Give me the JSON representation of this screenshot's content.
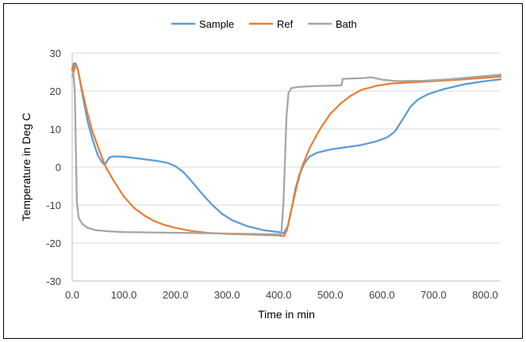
{
  "chart_data": {
    "type": "line",
    "title": "",
    "xlabel": "Time in min",
    "ylabel": "Temperature in Deg C",
    "xlim": [
      0,
      830
    ],
    "ylim": [
      -30,
      30
    ],
    "x_ticks": [
      0,
      100,
      200,
      300,
      400,
      500,
      600,
      700,
      800
    ],
    "x_tick_labels": [
      "0.0",
      "100.0",
      "200.0",
      "300.0",
      "400.0",
      "500.0",
      "600.0",
      "700.0",
      "800.0"
    ],
    "y_ticks": [
      -30,
      -20,
      -10,
      0,
      10,
      20,
      30
    ],
    "y_tick_labels": [
      "-30",
      "-20",
      "-10",
      "0",
      "10",
      "20",
      "30"
    ],
    "grid": "horizontal",
    "legend_position": "top-center",
    "series": [
      {
        "name": "Sample",
        "color": "#5B9BD5",
        "points": [
          [
            0,
            25.5
          ],
          [
            3,
            27.3
          ],
          [
            7,
            27.2
          ],
          [
            12,
            25
          ],
          [
            20,
            19
          ],
          [
            30,
            12
          ],
          [
            40,
            7
          ],
          [
            50,
            3
          ],
          [
            58,
            1.2
          ],
          [
            63,
            0.6
          ],
          [
            67,
            1.5
          ],
          [
            72,
            2.5
          ],
          [
            80,
            2.8
          ],
          [
            100,
            2.7
          ],
          [
            130,
            2.2
          ],
          [
            165,
            1.6
          ],
          [
            185,
            1.1
          ],
          [
            200,
            0.2
          ],
          [
            215,
            -1.3
          ],
          [
            230,
            -3.5
          ],
          [
            250,
            -6.8
          ],
          [
            270,
            -9.8
          ],
          [
            290,
            -12.3
          ],
          [
            310,
            -14
          ],
          [
            340,
            -15.6
          ],
          [
            370,
            -16.6
          ],
          [
            400,
            -17.1
          ],
          [
            410,
            -17.4
          ],
          [
            418,
            -15.5
          ],
          [
            425,
            -11
          ],
          [
            432,
            -6
          ],
          [
            440,
            -2
          ],
          [
            450,
            1
          ],
          [
            460,
            2.8
          ],
          [
            475,
            3.8
          ],
          [
            500,
            4.6
          ],
          [
            530,
            5.2
          ],
          [
            560,
            5.8
          ],
          [
            590,
            6.8
          ],
          [
            610,
            7.8
          ],
          [
            625,
            9.3
          ],
          [
            640,
            12.5
          ],
          [
            655,
            15.8
          ],
          [
            670,
            17.8
          ],
          [
            690,
            19.2
          ],
          [
            720,
            20.5
          ],
          [
            760,
            21.8
          ],
          [
            800,
            22.6
          ],
          [
            830,
            23.1
          ]
        ]
      },
      {
        "name": "Ref",
        "color": "#ED7D31",
        "points": [
          [
            0,
            26
          ],
          [
            2,
            24.5
          ],
          [
            6,
            26.8
          ],
          [
            10,
            26.2
          ],
          [
            18,
            21
          ],
          [
            28,
            15
          ],
          [
            40,
            9
          ],
          [
            55,
            3.5
          ],
          [
            65,
            0
          ],
          [
            80,
            -3.5
          ],
          [
            100,
            -7.8
          ],
          [
            120,
            -10.8
          ],
          [
            140,
            -12.8
          ],
          [
            160,
            -14.3
          ],
          [
            180,
            -15.3
          ],
          [
            200,
            -16
          ],
          [
            230,
            -16.8
          ],
          [
            260,
            -17.3
          ],
          [
            300,
            -17.6
          ],
          [
            350,
            -17.8
          ],
          [
            400,
            -18
          ],
          [
            410,
            -18.2
          ],
          [
            416,
            -16.5
          ],
          [
            425,
            -11
          ],
          [
            435,
            -5
          ],
          [
            445,
            0
          ],
          [
            460,
            5
          ],
          [
            480,
            10
          ],
          [
            500,
            14
          ],
          [
            520,
            16.7
          ],
          [
            540,
            18.8
          ],
          [
            560,
            20.3
          ],
          [
            590,
            21.4
          ],
          [
            620,
            22
          ],
          [
            660,
            22.3
          ],
          [
            700,
            22.6
          ],
          [
            750,
            23
          ],
          [
            800,
            23.5
          ],
          [
            830,
            23.8
          ]
        ]
      },
      {
        "name": "Bath",
        "color": "#A5A5A5",
        "points": [
          [
            0,
            24
          ],
          [
            2,
            25
          ],
          [
            5,
            20
          ],
          [
            7,
            5
          ],
          [
            9,
            -9
          ],
          [
            12,
            -13
          ],
          [
            15,
            -14
          ],
          [
            20,
            -15
          ],
          [
            30,
            -16
          ],
          [
            45,
            -16.6
          ],
          [
            70,
            -16.9
          ],
          [
            100,
            -17.1
          ],
          [
            150,
            -17.2
          ],
          [
            200,
            -17.3
          ],
          [
            250,
            -17.4
          ],
          [
            300,
            -17.5
          ],
          [
            350,
            -17.6
          ],
          [
            400,
            -17.7
          ],
          [
            405,
            -17.7
          ],
          [
            409,
            -10
          ],
          [
            412,
            0
          ],
          [
            415,
            13
          ],
          [
            419,
            19.5
          ],
          [
            425,
            20.8
          ],
          [
            440,
            21.1
          ],
          [
            470,
            21.3
          ],
          [
            500,
            21.4
          ],
          [
            522,
            21.5
          ],
          [
            524,
            23.2
          ],
          [
            560,
            23.4
          ],
          [
            580,
            23.6
          ],
          [
            600,
            23
          ],
          [
            630,
            22.6
          ],
          [
            680,
            22.7
          ],
          [
            730,
            23.1
          ],
          [
            780,
            23.7
          ],
          [
            830,
            24.3
          ]
        ]
      }
    ]
  }
}
